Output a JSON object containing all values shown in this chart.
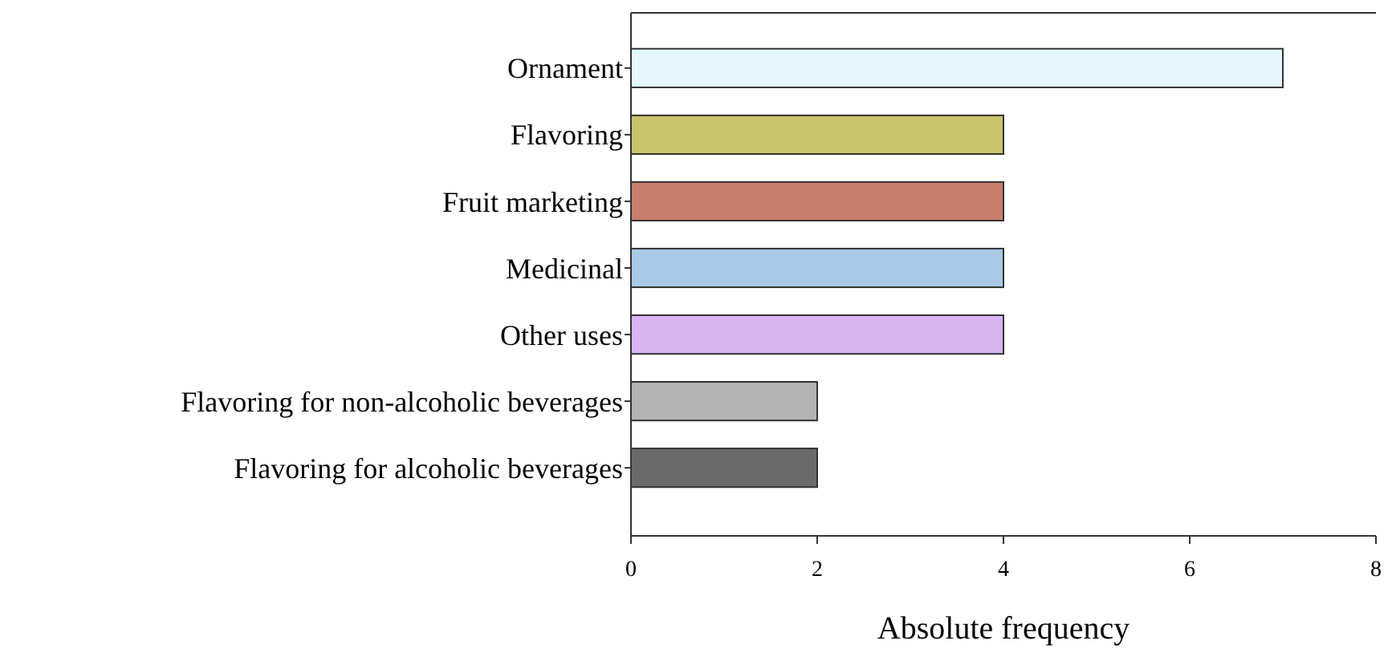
{
  "chart_data": {
    "type": "bar",
    "orientation": "horizontal",
    "xlabel": "Absolute frequency",
    "categories": [
      "Ornament",
      "Flavoring",
      "Fruit marketing",
      "Medicinal",
      "Other uses",
      "Flavoring for non-alcoholic beverages",
      "Flavoring for alcoholic beverages"
    ],
    "values": [
      7,
      4,
      4,
      4,
      4,
      2,
      2
    ],
    "colors": [
      "#e6f7fb",
      "#c9c46c",
      "#c97d6c",
      "#a9c9e6",
      "#d9b3f2",
      "#b3b3b3",
      "#6b6b6b"
    ],
    "xlim": [
      0,
      8
    ],
    "xticks": [
      0,
      2,
      4,
      6,
      8
    ],
    "grid": false
  }
}
